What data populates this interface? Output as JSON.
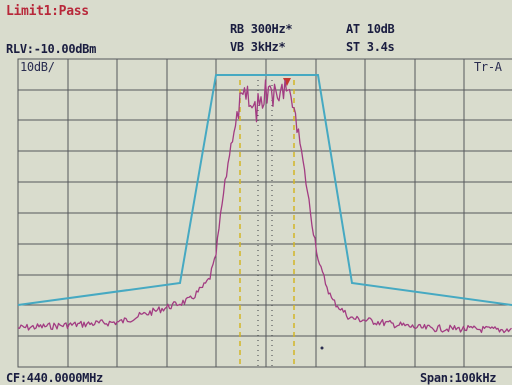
{
  "status": {
    "limit": "Limit1:Pass"
  },
  "settings": {
    "ref_level": "RLV:-10.00dBm",
    "rbw": "RB 300Hz*",
    "vbw": "VB 3kHz*",
    "attenuation": "AT 10dB",
    "sweep_time": "ST 3.4s",
    "scale": "10dB/",
    "trace": "Tr-A"
  },
  "footer": {
    "center_frequency": "CF:440.0000MHz",
    "span": "Span:100kHz"
  },
  "colors": {
    "background": "#d9dccd",
    "grid": "#55585c",
    "trace": "#a23c82",
    "limit_line": "#46a9c2",
    "markers": "#d2b526",
    "status_pass": "#b8283a"
  }
}
